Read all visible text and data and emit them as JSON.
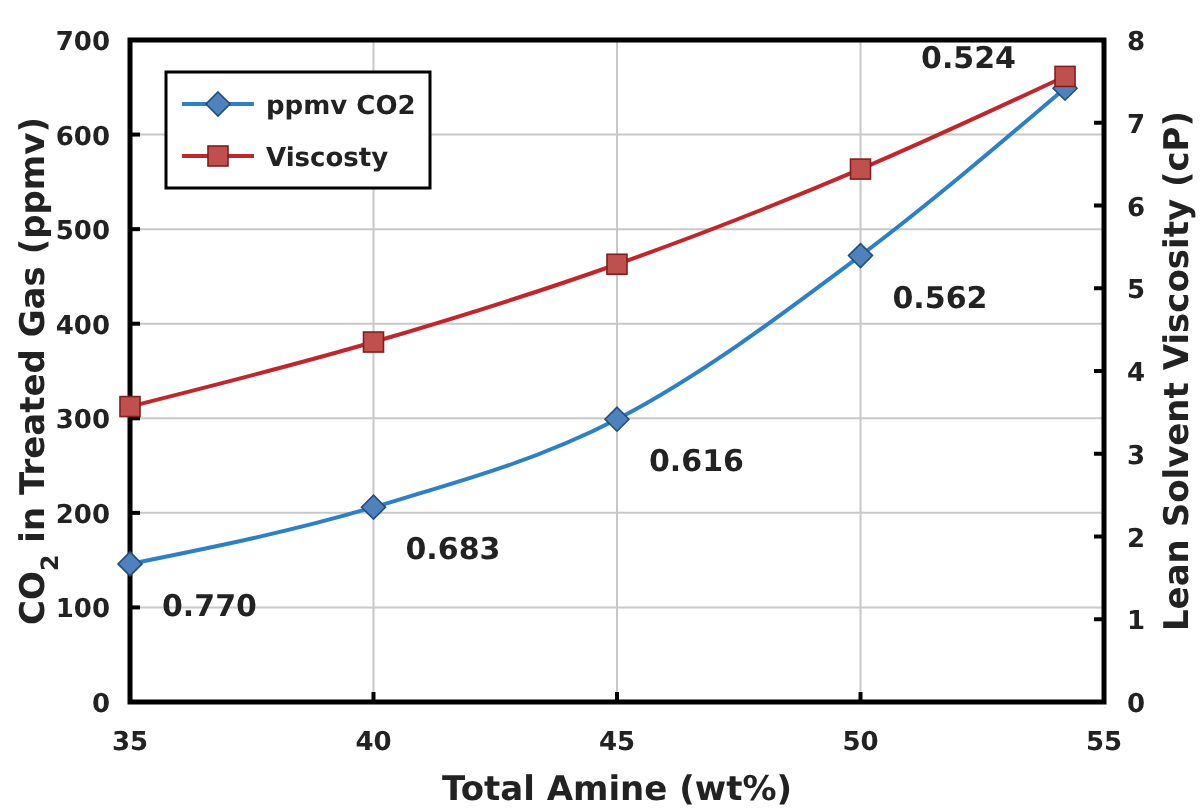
{
  "chart_data": {
    "type": "line",
    "xlabel": "Total Amine (wt%)",
    "ylabel": "CO$_{2}$ in Treated Gas (ppmv)",
    "y2label": "Lean Solvent Viscosity (cP)",
    "xlim": [
      35,
      55
    ],
    "xticks": [
      35,
      40,
      45,
      50,
      55
    ],
    "ylim": [
      0,
      700
    ],
    "yticks": [
      0,
      100,
      200,
      300,
      400,
      500,
      600,
      700
    ],
    "y2lim": [
      0,
      8
    ],
    "y2ticks": [
      0,
      1,
      2,
      3,
      4,
      5,
      6,
      7,
      8
    ],
    "grid": true,
    "legend": "top left",
    "line_style": "solid",
    "series": [
      {
        "name": "ppmv CO2",
        "color": "#2e7fc4",
        "marker": "diamond",
        "x": [
          35,
          40,
          45,
          50,
          54.2
        ],
        "values": [
          146,
          206,
          299,
          472,
          649
        ]
      },
      {
        "name": "Viscosty",
        "color": "#c0272d",
        "marker": "square",
        "axis": "y2",
        "x": [
          35,
          40,
          45,
          50,
          54.2
        ],
        "values": [
          3.57,
          4.35,
          5.29,
          6.44,
          7.56
        ]
      }
    ],
    "annotations": [
      {
        "text": "0.770",
        "x": 35,
        "y": 146
      },
      {
        "text": "0.683",
        "x": 40,
        "y": 206
      },
      {
        "text": "0.616",
        "x": 45,
        "y": 299
      },
      {
        "text": "0.562",
        "x": 50,
        "y": 472
      },
      {
        "text": "0.524",
        "x": 54.2,
        "y": 649
      }
    ]
  }
}
